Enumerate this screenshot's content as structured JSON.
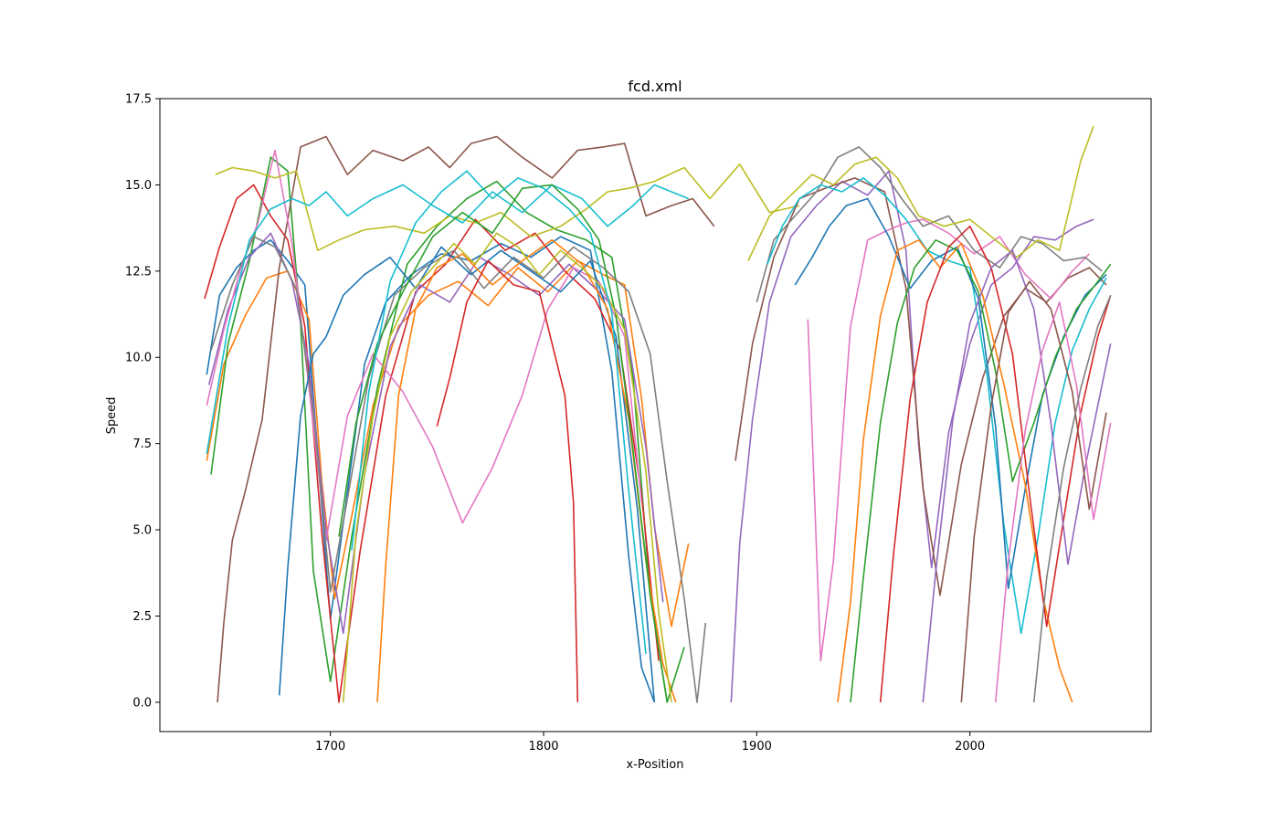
{
  "chart_data": {
    "type": "line",
    "title": "fcd.xml",
    "xlabel": "x-Position",
    "ylabel": "Speed",
    "xlim": [
      1620,
      2085
    ],
    "ylim": [
      -0.85,
      17.5
    ],
    "xticks": [
      1700,
      1800,
      1900,
      2000
    ],
    "xtick_labels": [
      "1700",
      "1800",
      "1900",
      "2000"
    ],
    "yticks": [
      0.0,
      2.5,
      5.0,
      7.5,
      10.0,
      12.5,
      15.0,
      17.5
    ],
    "ytick_labels": [
      "0.0",
      "2.5",
      "5.0",
      "7.5",
      "10.0",
      "12.5",
      "15.0",
      "17.5"
    ],
    "grid": false,
    "legend": false,
    "colors": [
      "#1f77b4",
      "#ff7f0e",
      "#2ca02c",
      "#d62728",
      "#9467bd",
      "#8c564b",
      "#e377c2",
      "#7f7f7f",
      "#bcbd22",
      "#17becf"
    ],
    "series": [
      {
        "x": [
          1642,
          1648,
          1656,
          1664,
          1672,
          1680,
          1688,
          1694,
          1700,
          1708,
          1716,
          1726,
          1738,
          1752,
          1766,
          1780,
          1794,
          1808,
          1822,
          1832,
          1840,
          1846,
          1852
        ],
        "y": [
          9.5,
          11.8,
          12.6,
          13.1,
          13.4,
          12.8,
          12.1,
          7.2,
          2.4,
          6.1,
          9.8,
          11.6,
          12.4,
          13.0,
          12.8,
          13.3,
          12.9,
          13.5,
          13.1,
          9.6,
          4.2,
          1.0,
          0.0
        ]
      },
      {
        "x": [
          1642,
          1650,
          1660,
          1670,
          1680,
          1690,
          1696,
          1702,
          1710,
          1720,
          1732,
          1746,
          1760,
          1774,
          1788,
          1802,
          1816,
          1828,
          1838,
          1846,
          1852,
          1860,
          1868
        ],
        "y": [
          7.0,
          9.8,
          11.2,
          12.3,
          12.5,
          11.1,
          6.4,
          3.0,
          5.4,
          8.6,
          10.9,
          11.8,
          12.2,
          11.5,
          12.6,
          11.9,
          12.8,
          12.4,
          12.1,
          8.8,
          5.1,
          2.2,
          4.6
        ]
      },
      {
        "x": [
          1644,
          1652,
          1662,
          1672,
          1680,
          1686,
          1692,
          1700,
          1710,
          1722,
          1736,
          1750,
          1764,
          1778,
          1792,
          1806,
          1820,
          1832,
          1842,
          1850,
          1858
        ],
        "y": [
          6.6,
          10.4,
          12.8,
          15.8,
          15.4,
          11.0,
          3.8,
          0.6,
          4.8,
          9.1,
          12.7,
          13.8,
          14.6,
          15.1,
          14.2,
          13.7,
          13.4,
          12.9,
          9.4,
          3.1,
          0.0
        ]
      },
      {
        "x": [
          1641,
          1648,
          1656,
          1664,
          1672,
          1680,
          1688,
          1696,
          1704,
          1714,
          1726,
          1740,
          1754,
          1768,
          1782,
          1796,
          1810,
          1824,
          1836,
          1846,
          1854
        ],
        "y": [
          11.7,
          13.2,
          14.6,
          15.0,
          14.1,
          13.4,
          10.9,
          4.9,
          0.0,
          4.4,
          8.9,
          11.9,
          12.7,
          14.0,
          13.1,
          13.6,
          12.5,
          11.7,
          10.2,
          6.0,
          1.2
        ]
      },
      {
        "x": [
          1643,
          1652,
          1662,
          1672,
          1682,
          1690,
          1698,
          1706,
          1716,
          1728,
          1742,
          1756,
          1770,
          1784,
          1798,
          1812,
          1826,
          1838,
          1848,
          1856
        ],
        "y": [
          9.2,
          11.4,
          12.9,
          13.6,
          12.2,
          9.8,
          5.0,
          2.0,
          6.6,
          10.3,
          12.1,
          11.6,
          12.9,
          12.4,
          11.8,
          12.7,
          11.9,
          11.1,
          7.4,
          2.9
        ]
      },
      {
        "x": [
          1647,
          1650,
          1654,
          1660,
          1668,
          1676,
          1686,
          1698,
          1708,
          1720,
          1734,
          1746,
          1756,
          1766,
          1778,
          1790,
          1804,
          1816,
          1828,
          1838,
          1848,
          1860,
          1870,
          1880
        ],
        "y": [
          0.0,
          2.3,
          4.7,
          6.1,
          8.2,
          12.6,
          16.1,
          16.4,
          15.3,
          16.0,
          15.7,
          16.1,
          15.5,
          16.2,
          16.4,
          15.8,
          15.2,
          16.0,
          16.1,
          16.2,
          14.1,
          14.4,
          14.6,
          13.8
        ]
      },
      {
        "x": [
          1642,
          1650,
          1658,
          1666,
          1674,
          1682,
          1690,
          1698,
          1708,
          1720,
          1734,
          1748,
          1762,
          1776,
          1790,
          1802,
          1814,
          1826,
          1838,
          1846
        ],
        "y": [
          8.6,
          10.8,
          12.6,
          13.9,
          16.0,
          13.3,
          9.1,
          4.7,
          8.3,
          10.1,
          9.0,
          7.4,
          5.2,
          6.8,
          8.9,
          11.4,
          12.6,
          12.2,
          10.6,
          5.8
        ]
      },
      {
        "x": [
          1644,
          1654,
          1664,
          1674,
          1684,
          1692,
          1700,
          1708,
          1718,
          1730,
          1744,
          1758,
          1772,
          1786,
          1800,
          1814,
          1828,
          1840,
          1850,
          1858,
          1866,
          1872,
          1876
        ],
        "y": [
          10.2,
          12.1,
          13.5,
          13.2,
          12.0,
          8.4,
          3.2,
          5.9,
          9.4,
          11.8,
          12.6,
          13.1,
          12.0,
          12.9,
          12.3,
          13.2,
          12.6,
          11.9,
          10.1,
          6.4,
          3.0,
          0.0,
          2.3
        ]
      },
      {
        "x": [
          1646,
          1654,
          1664,
          1674,
          1684,
          1694,
          1704,
          1716,
          1730,
          1744,
          1756,
          1768,
          1780,
          1794,
          1808,
          1820,
          1830,
          1840,
          1852,
          1866,
          1878,
          1892,
          1906,
          1920
        ],
        "y": [
          15.3,
          15.5,
          15.4,
          15.2,
          15.4,
          13.1,
          13.4,
          13.7,
          13.8,
          13.6,
          14.1,
          13.9,
          14.2,
          13.5,
          13.8,
          14.3,
          14.8,
          14.9,
          15.1,
          15.5,
          14.6,
          15.6,
          14.2,
          14.4
        ]
      },
      {
        "x": [
          1642,
          1652,
          1662,
          1672,
          1682,
          1690,
          1698,
          1708,
          1720,
          1734,
          1748,
          1762,
          1776,
          1790,
          1804,
          1818,
          1830,
          1842,
          1852,
          1860,
          1868
        ],
        "y": [
          7.2,
          10.9,
          13.4,
          14.3,
          14.6,
          14.4,
          14.8,
          14.1,
          14.6,
          15.0,
          14.4,
          13.9,
          14.8,
          14.2,
          15.0,
          14.6,
          13.8,
          14.4,
          15.0,
          14.8,
          14.6
        ]
      },
      {
        "x": [
          1676,
          1680,
          1686,
          1692,
          1698,
          1706,
          1716,
          1728,
          1740,
          1752,
          1766,
          1780,
          1794,
          1808,
          1822,
          1834,
          1844,
          1852
        ],
        "y": [
          0.2,
          3.9,
          8.3,
          10.1,
          10.6,
          11.8,
          12.4,
          12.9,
          12.0,
          13.2,
          12.4,
          13.1,
          12.5,
          11.9,
          12.8,
          10.6,
          5.6,
          0.0
        ]
      },
      {
        "x": [
          1722,
          1726,
          1732,
          1740,
          1750,
          1762,
          1776,
          1790,
          1804,
          1818,
          1830,
          1840,
          1848,
          1856,
          1862
        ],
        "y": [
          0.0,
          4.0,
          8.9,
          11.4,
          12.6,
          13.0,
          12.1,
          12.8,
          13.4,
          12.7,
          11.4,
          8.2,
          4.1,
          1.1,
          0.0
        ]
      },
      {
        "x": [
          1704,
          1712,
          1722,
          1734,
          1748,
          1762,
          1776,
          1790,
          1804,
          1816,
          1826,
          1834,
          1842,
          1850,
          1858,
          1866
        ],
        "y": [
          4.8,
          8.1,
          10.4,
          11.9,
          13.5,
          14.2,
          13.6,
          14.9,
          15.0,
          14.3,
          13.4,
          11.2,
          7.3,
          3.1,
          0.0,
          1.6
        ]
      },
      {
        "x": [
          1750,
          1756,
          1764,
          1774,
          1786,
          1798,
          1810,
          1814,
          1816
        ],
        "y": [
          8.0,
          9.4,
          11.6,
          12.8,
          12.1,
          11.9,
          8.9,
          5.8,
          0.0
        ]
      },
      {
        "x": [
          1888,
          1892,
          1898,
          1906,
          1916,
          1928,
          1940,
          1952,
          1962,
          1970,
          1976,
          1982,
          1990,
          2000,
          2010,
          2020,
          2030,
          2040,
          2050,
          2058
        ],
        "y": [
          0.0,
          4.6,
          8.2,
          11.6,
          13.5,
          14.4,
          15.1,
          14.7,
          15.4,
          13.1,
          7.4,
          3.9,
          7.8,
          10.4,
          12.1,
          12.6,
          13.5,
          13.4,
          13.8,
          14.0
        ]
      },
      {
        "x": [
          1890,
          1898,
          1908,
          1920,
          1932,
          1946,
          1960,
          1970,
          1978,
          1986,
          1996,
          2006,
          2016,
          2026,
          2036,
          2046,
          2056,
          2064
        ],
        "y": [
          7.0,
          10.4,
          12.9,
          14.6,
          14.9,
          15.2,
          14.8,
          12.0,
          6.2,
          3.1,
          6.9,
          9.4,
          11.2,
          12.0,
          11.6,
          12.3,
          12.6,
          12.1
        ]
      },
      {
        "x": [
          1924,
          1930,
          1936,
          1944,
          1952,
          1962,
          1970,
          1978,
          1990,
          2002,
          2014,
          2026,
          2038,
          2048,
          2056
        ],
        "y": [
          11.1,
          1.2,
          4.1,
          10.9,
          13.4,
          13.7,
          13.9,
          14.0,
          13.6,
          13.0,
          13.5,
          12.4,
          11.7,
          12.5,
          13.0
        ]
      },
      {
        "x": [
          1900,
          1908,
          1918,
          1928,
          1938,
          1948,
          1958,
          1968,
          1978,
          1990,
          2002,
          2014,
          2024,
          2034,
          2044,
          2054,
          2062
        ],
        "y": [
          11.6,
          13.4,
          14.1,
          14.8,
          15.8,
          16.1,
          15.5,
          14.6,
          13.8,
          14.1,
          13.1,
          12.6,
          13.5,
          13.3,
          12.8,
          12.9,
          12.5
        ]
      },
      {
        "x": [
          1896,
          1906,
          1916,
          1926,
          1936,
          1946,
          1956,
          1966,
          1976,
          1988,
          2000,
          2012,
          2022,
          2032,
          2042,
          2052,
          2058
        ],
        "y": [
          12.8,
          14.1,
          14.7,
          15.3,
          15.0,
          15.6,
          15.8,
          15.2,
          14.1,
          13.8,
          14.0,
          13.4,
          12.9,
          13.4,
          13.1,
          15.7,
          16.7
        ]
      },
      {
        "x": [
          1905,
          1912,
          1920,
          1930,
          1940,
          1950,
          1960,
          1970,
          1980,
          1990,
          2000,
          2008,
          2016,
          2024,
          2032,
          2040,
          2048,
          2056,
          2064
        ],
        "y": [
          12.7,
          13.8,
          14.6,
          15.0,
          14.8,
          15.2,
          14.7,
          14.0,
          13.1,
          12.8,
          12.6,
          9.5,
          5.1,
          2.0,
          4.8,
          8.1,
          10.2,
          11.4,
          12.3
        ]
      },
      {
        "x": [
          1918,
          1926,
          1934,
          1942,
          1952,
          1962,
          1972,
          1982,
          1994,
          2004,
          2012,
          2018,
          2026,
          2034,
          2044,
          2054,
          2064
        ],
        "y": [
          12.1,
          12.9,
          13.8,
          14.4,
          14.6,
          13.5,
          12.0,
          12.8,
          13.2,
          11.7,
          8.0,
          3.3,
          6.2,
          8.9,
          10.6,
          11.8,
          12.4
        ]
      },
      {
        "x": [
          1938,
          1944,
          1950,
          1958,
          1966,
          1976,
          1986,
          1996,
          2006,
          2016,
          2026,
          2034,
          2042,
          2048
        ],
        "y": [
          0.0,
          2.9,
          7.6,
          11.2,
          13.1,
          13.4,
          12.6,
          13.3,
          11.8,
          9.2,
          6.3,
          3.1,
          1.0,
          0.0
        ]
      },
      {
        "x": [
          1944,
          1950,
          1958,
          1966,
          1974,
          1984,
          1994,
          2004,
          2012,
          2020,
          2030,
          2040,
          2050,
          2060,
          2066
        ],
        "y": [
          0.0,
          3.6,
          8.1,
          11.0,
          12.6,
          13.4,
          13.1,
          11.9,
          9.6,
          6.4,
          8.1,
          10.0,
          11.4,
          12.2,
          12.7
        ]
      },
      {
        "x": [
          1958,
          1964,
          1972,
          1980,
          1990,
          2000,
          2010,
          2020,
          2028,
          2036,
          2044,
          2052,
          2060,
          2066
        ],
        "y": [
          0.0,
          4.2,
          8.8,
          11.6,
          13.2,
          13.8,
          12.6,
          10.1,
          6.0,
          2.2,
          5.3,
          8.4,
          10.6,
          11.8
        ]
      },
      {
        "x": [
          1978,
          1984,
          1992,
          2000,
          2010,
          2020,
          2030,
          2038,
          2046,
          2054,
          2062,
          2066
        ],
        "y": [
          0.0,
          3.8,
          8.2,
          11.0,
          12.6,
          13.1,
          11.4,
          8.1,
          4.0,
          6.8,
          9.2,
          10.4
        ]
      },
      {
        "x": [
          1996,
          2002,
          2010,
          2018,
          2028,
          2038,
          2048,
          2056,
          2064
        ],
        "y": [
          0.0,
          4.8,
          8.6,
          11.3,
          12.2,
          11.4,
          9.0,
          5.6,
          8.4
        ]
      },
      {
        "x": [
          2012,
          2018,
          2026,
          2034,
          2042,
          2050,
          2058,
          2066
        ],
        "y": [
          0.0,
          4.1,
          7.9,
          10.2,
          11.6,
          9.2,
          5.3,
          8.1
        ]
      },
      {
        "x": [
          2030,
          2036,
          2044,
          2052,
          2060,
          2066
        ],
        "y": [
          0.0,
          3.6,
          6.8,
          9.1,
          10.9,
          11.8
        ]
      },
      {
        "x": [
          1706,
          1712,
          1720,
          1728,
          1738,
          1748,
          1758,
          1768,
          1778,
          1788,
          1798,
          1808,
          1818,
          1828,
          1838,
          1848,
          1854,
          1860
        ],
        "y": [
          0.0,
          4.9,
          8.3,
          10.6,
          11.9,
          12.6,
          13.3,
          12.7,
          13.6,
          13.2,
          12.4,
          13.1,
          12.6,
          12.0,
          10.8,
          6.7,
          2.6,
          0.0
        ]
      },
      {
        "x": [
          1710,
          1718,
          1728,
          1740,
          1752,
          1764,
          1776,
          1788,
          1800,
          1812,
          1822,
          1832,
          1840,
          1848
        ],
        "y": [
          4.4,
          9.0,
          12.2,
          13.9,
          14.8,
          15.4,
          14.6,
          15.2,
          14.9,
          14.3,
          13.6,
          11.3,
          6.1,
          1.4
        ]
      }
    ]
  }
}
